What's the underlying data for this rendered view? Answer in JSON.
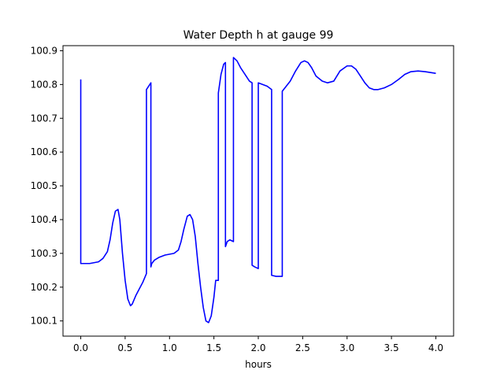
{
  "chart_data": {
    "type": "line",
    "title": "Water Depth h at gauge 99",
    "xlabel": "hours",
    "ylabel": "",
    "xlim": [
      -0.2,
      4.2
    ],
    "ylim": [
      100.055,
      100.915
    ],
    "xticks": [
      0.0,
      0.5,
      1.0,
      1.5,
      2.0,
      2.5,
      3.0,
      3.5,
      4.0
    ],
    "xtick_labels": [
      "0.0",
      "0.5",
      "1.0",
      "1.5",
      "2.0",
      "2.5",
      "3.0",
      "3.5",
      "4.0"
    ],
    "yticks": [
      100.1,
      100.2,
      100.3,
      100.4,
      100.5,
      100.6,
      100.7,
      100.8,
      100.9
    ],
    "ytick_labels": [
      "100.1",
      "100.2",
      "100.3",
      "100.4",
      "100.5",
      "100.6",
      "100.7",
      "100.8",
      "100.9"
    ],
    "grid": false,
    "legend": "none",
    "line_color": "#0000ff",
    "series": [
      {
        "x": [
          0.0,
          0.0,
          0.1,
          0.2,
          0.25,
          0.3,
          0.33,
          0.36,
          0.39,
          0.42,
          0.44,
          0.47,
          0.5,
          0.53,
          0.56,
          0.58,
          0.62,
          0.66,
          0.7,
          0.74,
          0.74,
          0.79,
          0.79,
          0.8,
          0.83,
          0.88,
          0.95,
          1.05,
          1.1,
          1.13,
          1.16,
          1.2,
          1.23,
          1.26,
          1.29,
          1.32,
          1.35,
          1.38,
          1.41,
          1.44,
          1.47,
          1.5,
          1.52,
          1.55,
          1.55,
          1.58,
          1.61,
          1.63,
          1.63,
          1.65,
          1.68,
          1.72,
          1.72,
          1.76,
          1.8,
          1.85,
          1.9,
          1.93,
          1.93,
          1.96,
          2.0,
          2.0,
          2.05,
          2.1,
          2.15,
          2.15,
          2.2,
          2.27,
          2.27,
          2.3,
          2.36,
          2.42,
          2.48,
          2.52,
          2.56,
          2.6,
          2.65,
          2.72,
          2.78,
          2.85,
          2.92,
          3.0,
          3.05,
          3.1,
          3.15,
          3.2,
          3.25,
          3.3,
          3.35,
          3.42,
          3.5,
          3.58,
          3.65,
          3.72,
          3.8,
          3.88,
          3.95,
          4.0
        ],
        "y": [
          100.815,
          100.27,
          100.27,
          100.275,
          100.285,
          100.305,
          100.34,
          100.39,
          100.425,
          100.43,
          100.4,
          100.3,
          100.22,
          100.165,
          100.145,
          100.15,
          100.175,
          100.195,
          100.215,
          100.24,
          100.785,
          100.805,
          100.26,
          100.27,
          100.28,
          100.288,
          100.295,
          100.3,
          100.31,
          100.335,
          100.37,
          100.41,
          100.415,
          100.4,
          100.35,
          100.27,
          100.2,
          100.14,
          100.1,
          100.095,
          100.115,
          100.17,
          100.22,
          100.22,
          100.775,
          100.83,
          100.86,
          100.865,
          100.32,
          100.335,
          100.34,
          100.335,
          100.88,
          100.87,
          100.85,
          100.83,
          100.81,
          100.805,
          100.265,
          100.26,
          100.255,
          100.805,
          100.8,
          100.795,
          100.785,
          100.235,
          100.232,
          100.232,
          100.78,
          100.79,
          100.81,
          100.84,
          100.865,
          100.87,
          100.865,
          100.85,
          100.825,
          100.81,
          100.805,
          100.81,
          100.84,
          100.855,
          100.855,
          100.845,
          100.825,
          100.805,
          100.79,
          100.785,
          100.785,
          100.79,
          100.8,
          100.815,
          100.83,
          100.838,
          100.84,
          100.838,
          100.835,
          100.833
        ]
      }
    ]
  }
}
